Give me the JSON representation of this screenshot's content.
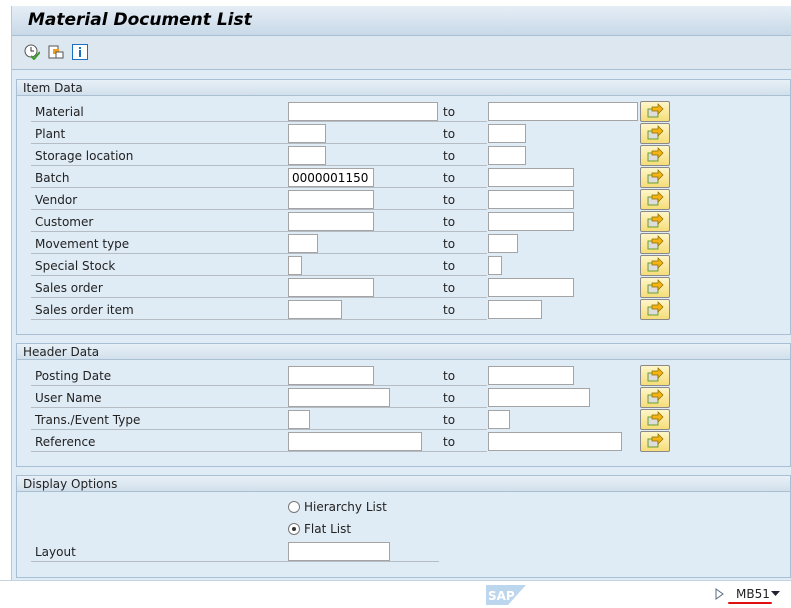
{
  "title": "Material Document List",
  "toolbar": [
    {
      "icon": "execute-clock-icon"
    },
    {
      "icon": "get-variant-icon"
    },
    {
      "icon": "info-icon"
    }
  ],
  "to_label": "to",
  "item_data": {
    "title": "Item Data",
    "rows": [
      {
        "label": "Material",
        "from": "",
        "to": ""
      },
      {
        "label": "Plant",
        "from": "",
        "to": ""
      },
      {
        "label": "Storage location",
        "from": "",
        "to": ""
      },
      {
        "label": "Batch",
        "from": "0000001150",
        "to": ""
      },
      {
        "label": "Vendor",
        "from": "",
        "to": ""
      },
      {
        "label": "Customer",
        "from": "",
        "to": ""
      },
      {
        "label": "Movement type",
        "from": "",
        "to": ""
      },
      {
        "label": "Special Stock",
        "from": "",
        "to": ""
      },
      {
        "label": "Sales order",
        "from": "",
        "to": ""
      },
      {
        "label": "Sales order item",
        "from": "",
        "to": ""
      }
    ]
  },
  "header_data": {
    "title": "Header Data",
    "rows": [
      {
        "label": "Posting Date",
        "from": "",
        "to": ""
      },
      {
        "label": "User Name",
        "from": "",
        "to": ""
      },
      {
        "label": "Trans./Event Type",
        "from": "",
        "to": ""
      },
      {
        "label": "Reference",
        "from": "",
        "to": ""
      }
    ]
  },
  "display_options": {
    "title": "Display Options",
    "hierarchy": "Hierarchy List",
    "flat": "Flat List",
    "selected": "Flat List",
    "layout_label": "Layout",
    "layout_value": ""
  },
  "footer": {
    "logo": "SAP",
    "tcode": "MB51"
  },
  "colors": {
    "accent": "#f6dd7a",
    "background": "#dfebf5"
  }
}
